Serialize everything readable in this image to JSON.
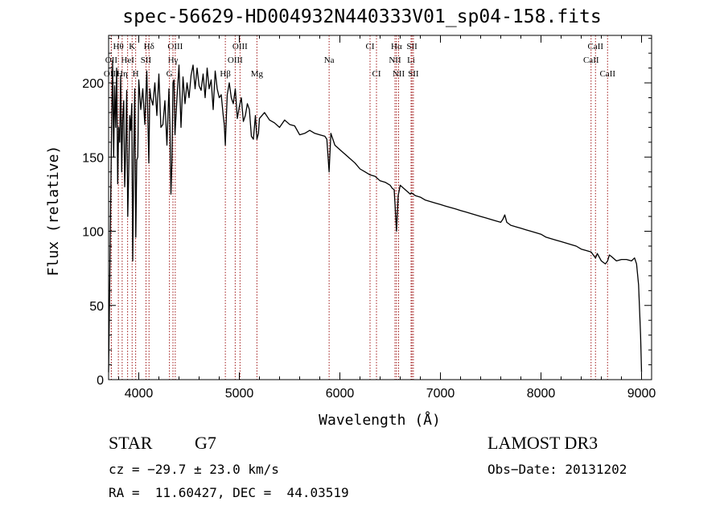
{
  "chart_data": {
    "type": "line",
    "title": "spec-56629-HD004932N440333V01_sp04-158.fits",
    "xlabel": "Wavelength (Å)",
    "ylabel": "Flux (relative)",
    "xlim": [
      3700,
      9100
    ],
    "ylim": [
      0,
      232
    ],
    "xticks": [
      4000,
      5000,
      6000,
      7000,
      8000,
      9000
    ],
    "yticks": [
      0,
      50,
      100,
      150,
      200
    ],
    "line_color": "#000000",
    "marker_color": "#a01818",
    "series": [
      {
        "name": "flux",
        "x": [
          3700,
          3710,
          3720,
          3730,
          3740,
          3750,
          3760,
          3770,
          3780,
          3790,
          3800,
          3810,
          3820,
          3830,
          3840,
          3850,
          3860,
          3870,
          3880,
          3890,
          3900,
          3910,
          3920,
          3930,
          3940,
          3950,
          3960,
          3970,
          3980,
          3990,
          4000,
          4020,
          4040,
          4060,
          4080,
          4100,
          4110,
          4120,
          4140,
          4160,
          4180,
          4200,
          4220,
          4240,
          4260,
          4280,
          4300,
          4310,
          4320,
          4330,
          4340,
          4350,
          4360,
          4380,
          4400,
          4420,
          4440,
          4460,
          4480,
          4500,
          4520,
          4540,
          4560,
          4580,
          4600,
          4620,
          4640,
          4660,
          4680,
          4700,
          4720,
          4740,
          4760,
          4780,
          4800,
          4820,
          4840,
          4850,
          4861,
          4870,
          4880,
          4900,
          4920,
          4940,
          4960,
          4980,
          5000,
          5020,
          5040,
          5060,
          5080,
          5100,
          5120,
          5140,
          5160,
          5175,
          5190,
          5200,
          5250,
          5300,
          5350,
          5400,
          5450,
          5500,
          5550,
          5600,
          5650,
          5700,
          5750,
          5800,
          5850,
          5870,
          5893,
          5910,
          5950,
          6000,
          6050,
          6100,
          6150,
          6200,
          6250,
          6300,
          6350,
          6400,
          6450,
          6500,
          6520,
          6540,
          6563,
          6580,
          6600,
          6650,
          6700,
          6710,
          6750,
          6800,
          6850,
          6900,
          6950,
          7000,
          7050,
          7100,
          7150,
          7200,
          7250,
          7300,
          7350,
          7400,
          7450,
          7500,
          7550,
          7600,
          7620,
          7640,
          7660,
          7700,
          7750,
          7800,
          7850,
          7900,
          7950,
          8000,
          8050,
          8100,
          8150,
          8200,
          8250,
          8300,
          8350,
          8400,
          8450,
          8498,
          8520,
          8542,
          8560,
          8600,
          8640,
          8662,
          8680,
          8700,
          8750,
          8800,
          8850,
          8900,
          8930,
          8950,
          8970,
          8990,
          9000
        ],
        "y": [
          5,
          60,
          118,
          172,
          215,
          150,
          198,
          170,
          210,
          132,
          170,
          160,
          205,
          140,
          176,
          188,
          130,
          156,
          195,
          110,
          140,
          178,
          168,
          186,
          80,
          152,
          196,
          96,
          148,
          150,
          202,
          182,
          196,
          172,
          208,
          146,
          196,
          190,
          185,
          200,
          178,
          206,
          170,
          172,
          188,
          158,
          196,
          170,
          125,
          148,
          200,
          202,
          165,
          190,
          212,
          170,
          204,
          186,
          200,
          190,
          205,
          212,
          196,
          210,
          198,
          195,
          206,
          190,
          210,
          196,
          202,
          182,
          208,
          196,
          190,
          192,
          178,
          172,
          158,
          176,
          192,
          200,
          190,
          186,
          196,
          176,
          184,
          190,
          174,
          178,
          186,
          182,
          164,
          162,
          178,
          162,
          166,
          176,
          180,
          175,
          173,
          170,
          175,
          172,
          171,
          165,
          166,
          168,
          166,
          165,
          164,
          162,
          140,
          166,
          158,
          155,
          152,
          149,
          146,
          142,
          140,
          138,
          137,
          134,
          133,
          131,
          129,
          128,
          100,
          124,
          131,
          128,
          125,
          126,
          124,
          123,
          121,
          120,
          119,
          118,
          117,
          116,
          115,
          114,
          113,
          112,
          111,
          110,
          109,
          108,
          107,
          106,
          108,
          111,
          106,
          104,
          103,
          102,
          101,
          100,
          99,
          98,
          96,
          95,
          94,
          93,
          92,
          91,
          90,
          88,
          87,
          86,
          84,
          82,
          85,
          80,
          78,
          80,
          84,
          83,
          80,
          81,
          81,
          80,
          82,
          78,
          64,
          30,
          5
        ]
      }
    ],
    "line_markers": [
      {
        "name": "Hθ",
        "x": 3797,
        "row": 1
      },
      {
        "name": "OII",
        "x": 3727,
        "row": 2
      },
      {
        "name": "OIII",
        "x": 3727,
        "row": 3
      },
      {
        "name": "K",
        "x": 3934,
        "row": 1
      },
      {
        "name": "HeI",
        "x": 3889,
        "row": 2
      },
      {
        "name": "Hη",
        "x": 3835,
        "row": 3
      },
      {
        "name": "Hδ",
        "x": 4102,
        "row": 1
      },
      {
        "name": "SII",
        "x": 4072,
        "row": 2
      },
      {
        "name": "H",
        "x": 3969,
        "row": 3
      },
      {
        "name": "OIII",
        "x": 4363,
        "row": 1
      },
      {
        "name": "Hγ",
        "x": 4340,
        "row": 2
      },
      {
        "name": "G",
        "x": 4305,
        "row": 3
      },
      {
        "name": "OIII",
        "x": 5007,
        "row": 1
      },
      {
        "name": "OIII",
        "x": 4959,
        "row": 2
      },
      {
        "name": "Hβ",
        "x": 4861,
        "row": 3
      },
      {
        "name": "Mg",
        "x": 5175,
        "row": 3
      },
      {
        "name": "Na",
        "x": 5893,
        "row": 2
      },
      {
        "name": "CI",
        "x": 6300,
        "row": 1
      },
      {
        "name": "CI",
        "x": 6364,
        "row": 3
      },
      {
        "name": "Hα",
        "x": 6563,
        "row": 1
      },
      {
        "name": "NII",
        "x": 6548,
        "row": 2
      },
      {
        "name": "NII",
        "x": 6584,
        "row": 3
      },
      {
        "name": "SII",
        "x": 6717,
        "row": 1
      },
      {
        "name": "Li",
        "x": 6708,
        "row": 2
      },
      {
        "name": "SII",
        "x": 6731,
        "row": 3
      },
      {
        "name": "CaII",
        "x": 8542,
        "row": 1
      },
      {
        "name": "CaII",
        "x": 8498,
        "row": 2
      },
      {
        "name": "CaII",
        "x": 8662,
        "row": 3
      }
    ]
  },
  "info": {
    "object_type": "STAR",
    "subclass": "G7",
    "survey": "LAMOST DR3",
    "redshift": "cz = −29.7 ± 23.0 km/s",
    "obs_date": "Obs−Date: 20131202",
    "coordinates": "RA =  11.60427, DEC =  44.03519"
  }
}
